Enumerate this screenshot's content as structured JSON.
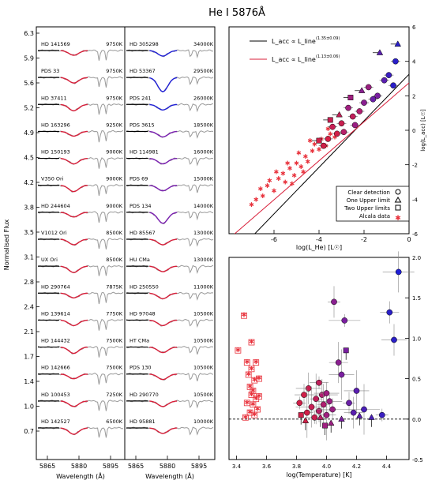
{
  "title": "He I 5876Å",
  "spectra_panel": {
    "ylabel": "Normalised Flux",
    "xlabel": "Wavelength (Å)",
    "yticks": [
      "6.3",
      "5.9",
      "5.6",
      "5.2",
      "4.9",
      "4.5",
      "4.2",
      "3.8",
      "3.5",
      "3.1",
      "2.8",
      "2.4",
      "2.1",
      "1.7",
      "1.4",
      "1.0",
      "0.7"
    ],
    "xticks": [
      "5865",
      "5880",
      "5895"
    ],
    "left_column": [
      {
        "name": "HD 141569",
        "teff": "9750K"
      },
      {
        "name": "PDS 33",
        "teff": "9750K"
      },
      {
        "name": "HD 37411",
        "teff": "9750K"
      },
      {
        "name": "HD 163296",
        "teff": "9250K"
      },
      {
        "name": "HD 150193",
        "teff": "9000K"
      },
      {
        "name": "V350 Ori",
        "teff": "9000K"
      },
      {
        "name": "HD 244604",
        "teff": "9000K"
      },
      {
        "name": "V1012 Ori",
        "teff": "8500K"
      },
      {
        "name": "UX Ori",
        "teff": "8500K"
      },
      {
        "name": "HD 290764",
        "teff": "7875K"
      },
      {
        "name": "HD 139614",
        "teff": "7750K"
      },
      {
        "name": "HD 144432",
        "teff": "7500K"
      },
      {
        "name": "HD 142666",
        "teff": "7500K"
      },
      {
        "name": "HD 100453",
        "teff": "7250K"
      },
      {
        "name": "HD 142527",
        "teff": "6500K"
      }
    ],
    "right_column": [
      {
        "name": "HD 305298",
        "teff": "34000K"
      },
      {
        "name": "HD 53367",
        "teff": "29500K"
      },
      {
        "name": "PDS 241",
        "teff": "26000K"
      },
      {
        "name": "PDS 3615",
        "teff": "18500K"
      },
      {
        "name": "HD 114981",
        "teff": "16000K"
      },
      {
        "name": "PDS 69",
        "teff": "15000K"
      },
      {
        "name": "PDS 134",
        "teff": "14000K"
      },
      {
        "name": "HD 85567",
        "teff": "13000K"
      },
      {
        "name": "HU CMa",
        "teff": "13000K"
      },
      {
        "name": "HD 250550",
        "teff": "11000K"
      },
      {
        "name": "HD 97048",
        "teff": "10500K"
      },
      {
        "name": "HT CMa",
        "teff": "10500K"
      },
      {
        "name": "PDS 130",
        "teff": "10500K"
      },
      {
        "name": "HD 290770",
        "teff": "10500K"
      },
      {
        "name": "HD 95881",
        "teff": "10000K"
      }
    ]
  },
  "colors": {
    "observed": "#999999",
    "continuum": "#000000",
    "blue": "#1f1fd6",
    "purple": "#7a1fb0",
    "red": "#d81f3a",
    "alcala": "#e8323c"
  },
  "chart_data": [
    {
      "type": "scatter",
      "panel": "top-right",
      "xlabel": "log(L_He) [L☉]",
      "ylabel": "log(L_acc) [L☉]",
      "xlim": [
        -8,
        0
      ],
      "ylim": [
        -6,
        6
      ],
      "xticks": [
        "-6",
        "-4",
        "-2",
        "0"
      ],
      "yticks": [
        "-6",
        "-4",
        "-2",
        "0",
        "2",
        "4",
        "6"
      ],
      "legend": {
        "position": "bottom-right",
        "entries": [
          "Clear detection",
          "One Upper limit",
          "Two Upper limits",
          "Alcala data"
        ]
      },
      "fit_legend": {
        "position": "top-left",
        "entries": [
          {
            "label": "L_acc ∝ L_line",
            "exponent": "(1.35±0.09)",
            "color": "#000000"
          },
          {
            "label": "L_acc ∝ L_line",
            "exponent": "(1.13±0.06)",
            "color": "#d81f3a"
          }
        ]
      },
      "fits": [
        {
          "slope": 1.35,
          "intercept": 3.25,
          "color": "#000000"
        },
        {
          "slope": 1.13,
          "intercept": 2.75,
          "color": "#d81f3a"
        }
      ],
      "detections": [
        {
          "x": -0.6,
          "y": 4.0,
          "c": "#2a1fc8"
        },
        {
          "x": -0.9,
          "y": 3.2,
          "c": "#3a1fc0"
        },
        {
          "x": -0.7,
          "y": 2.6,
          "c": "#2a1fc8"
        },
        {
          "x": -1.1,
          "y": 2.9,
          "c": "#5a1fb0"
        },
        {
          "x": -1.4,
          "y": 2.0,
          "c": "#7a1fa0"
        },
        {
          "x": -1.8,
          "y": 2.5,
          "c": "#9a1f80"
        },
        {
          "x": -2.0,
          "y": 1.6,
          "c": "#8a1f90"
        },
        {
          "x": -2.2,
          "y": 1.1,
          "c": "#b01f70"
        },
        {
          "x": -2.5,
          "y": 0.8,
          "c": "#c01f5a"
        },
        {
          "x": -2.7,
          "y": 1.3,
          "c": "#a01f80"
        },
        {
          "x": -3.0,
          "y": 0.4,
          "c": "#c81f50"
        },
        {
          "x": -3.2,
          "y": -0.2,
          "c": "#d01f48"
        },
        {
          "x": -3.4,
          "y": 0.2,
          "c": "#c81f55"
        },
        {
          "x": -3.6,
          "y": -0.5,
          "c": "#d81f45"
        },
        {
          "x": -2.9,
          "y": -0.1,
          "c": "#b81f68"
        },
        {
          "x": -2.4,
          "y": 0.3,
          "c": "#9a1f82"
        },
        {
          "x": -1.6,
          "y": 1.8,
          "c": "#6a1fa8"
        },
        {
          "x": -3.8,
          "y": -0.9,
          "c": "#d01f48"
        }
      ],
      "one_upper": [
        {
          "x": -1.3,
          "y": 4.5,
          "c": "#5a1fb0"
        },
        {
          "x": -2.1,
          "y": 2.3,
          "c": "#8a1f90"
        },
        {
          "x": -3.1,
          "y": 0.9,
          "c": "#c01f55"
        },
        {
          "x": -0.5,
          "y": 5.0,
          "c": "#2a1fc8"
        }
      ],
      "two_upper": [
        {
          "x": -3.5,
          "y": 0.6,
          "c": "#c81f50"
        },
        {
          "x": -4.0,
          "y": -0.6,
          "c": "#d01f48"
        },
        {
          "x": -2.6,
          "y": 1.9,
          "c": "#a01f80"
        }
      ],
      "alcala": [
        {
          "x": -7.0,
          "y": -4.3
        },
        {
          "x": -6.8,
          "y": -4.0
        },
        {
          "x": -6.5,
          "y": -3.8
        },
        {
          "x": -6.3,
          "y": -3.2
        },
        {
          "x": -6.0,
          "y": -3.5
        },
        {
          "x": -5.8,
          "y": -2.8
        },
        {
          "x": -5.6,
          "y": -2.5
        },
        {
          "x": -5.5,
          "y": -3.0
        },
        {
          "x": -5.3,
          "y": -2.2
        },
        {
          "x": -5.1,
          "y": -2.6
        },
        {
          "x": -5.0,
          "y": -1.9
        },
        {
          "x": -4.8,
          "y": -2.1
        },
        {
          "x": -4.6,
          "y": -1.5
        },
        {
          "x": -4.5,
          "y": -1.8
        },
        {
          "x": -4.3,
          "y": -1.2
        },
        {
          "x": -4.2,
          "y": -0.8
        },
        {
          "x": -4.0,
          "y": -1.1
        },
        {
          "x": -3.9,
          "y": -0.5
        },
        {
          "x": -3.7,
          "y": -0.9
        },
        {
          "x": -3.5,
          "y": -0.2
        },
        {
          "x": -6.2,
          "y": -2.9
        },
        {
          "x": -5.9,
          "y": -2.4
        },
        {
          "x": -5.4,
          "y": -1.9
        },
        {
          "x": -4.9,
          "y": -1.3
        },
        {
          "x": -4.4,
          "y": -0.6
        },
        {
          "x": -6.6,
          "y": -3.4
        },
        {
          "x": -5.2,
          "y": -3.1
        },
        {
          "x": -4.7,
          "y": -2.4
        },
        {
          "x": -3.3,
          "y": -0.4
        },
        {
          "x": -3.6,
          "y": 0.1
        }
      ]
    },
    {
      "type": "scatter",
      "panel": "bottom-right",
      "xlabel": "log(Temperature) [K]",
      "ylabel": "",
      "xlim": [
        3.35,
        4.55
      ],
      "ylim": [
        -0.5,
        2.0
      ],
      "xticks": [
        "3.4",
        "3.6",
        "3.8",
        "4.0",
        "4.2",
        "4.4"
      ],
      "yticks": [
        "-0.5",
        "0.0",
        "0.5",
        "1.0",
        "1.5",
        "2.0"
      ],
      "zero_line": 0.0,
      "alcala": [
        {
          "x": 3.41,
          "y": 0.85
        },
        {
          "x": 3.45,
          "y": 1.28
        },
        {
          "x": 3.47,
          "y": 0.7
        },
        {
          "x": 3.48,
          "y": 0.55
        },
        {
          "x": 3.49,
          "y": 0.4
        },
        {
          "x": 3.5,
          "y": 0.62
        },
        {
          "x": 3.5,
          "y": 0.3
        },
        {
          "x": 3.51,
          "y": 0.18
        },
        {
          "x": 3.52,
          "y": 0.05
        },
        {
          "x": 3.52,
          "y": 0.48
        },
        {
          "x": 3.53,
          "y": 0.25
        },
        {
          "x": 3.54,
          "y": 0.12
        },
        {
          "x": 3.49,
          "y": 0.08
        },
        {
          "x": 3.51,
          "y": 0.35
        },
        {
          "x": 3.55,
          "y": 0.5
        },
        {
          "x": 3.47,
          "y": 0.2
        },
        {
          "x": 3.53,
          "y": 0.7
        },
        {
          "x": 3.5,
          "y": 0.95
        },
        {
          "x": 3.46,
          "y": 0.02
        },
        {
          "x": 3.55,
          "y": 0.28
        }
      ],
      "detections": [
        {
          "x": 3.82,
          "y": 0.2,
          "c": "#d01f48"
        },
        {
          "x": 3.85,
          "y": 0.3,
          "c": "#d01f48"
        },
        {
          "x": 3.88,
          "y": 0.38,
          "c": "#c81f50"
        },
        {
          "x": 3.9,
          "y": 0.15,
          "c": "#c81f55"
        },
        {
          "x": 3.93,
          "y": 0.25,
          "c": "#c01f5a"
        },
        {
          "x": 3.95,
          "y": 0.45,
          "c": "#c01f5a"
        },
        {
          "x": 3.95,
          "y": 0.1,
          "c": "#b81f68"
        },
        {
          "x": 3.97,
          "y": 0.3,
          "c": "#b01f70"
        },
        {
          "x": 3.98,
          "y": 0.18,
          "c": "#b01f70"
        },
        {
          "x": 4.0,
          "y": 0.05,
          "c": "#a01f80"
        },
        {
          "x": 4.02,
          "y": 0.22,
          "c": "#9a1f82"
        },
        {
          "x": 4.04,
          "y": 0.12,
          "c": "#9a1f82"
        },
        {
          "x": 4.05,
          "y": 1.45,
          "c": "#8a1f90"
        },
        {
          "x": 4.08,
          "y": 0.7,
          "c": "#8a1f90"
        },
        {
          "x": 4.1,
          "y": 0.55,
          "c": "#7a1fa0"
        },
        {
          "x": 4.12,
          "y": 1.22,
          "c": "#7a1fa0"
        },
        {
          "x": 4.15,
          "y": 0.2,
          "c": "#6a1fa8"
        },
        {
          "x": 4.18,
          "y": 0.08,
          "c": "#5a1fb0"
        },
        {
          "x": 4.2,
          "y": 0.35,
          "c": "#5a1fb0"
        },
        {
          "x": 4.25,
          "y": 0.12,
          "c": "#4a1fb8"
        },
        {
          "x": 4.37,
          "y": 0.05,
          "c": "#3a1fc0"
        },
        {
          "x": 4.42,
          "y": 1.32,
          "c": "#2a1fc8"
        },
        {
          "x": 4.45,
          "y": 0.98,
          "c": "#2a1fc8"
        },
        {
          "x": 4.48,
          "y": 1.82,
          "c": "#1f1fd6"
        },
        {
          "x": 3.87,
          "y": 0.08,
          "c": "#d01f48"
        },
        {
          "x": 3.92,
          "y": 0.02,
          "c": "#c81f50"
        },
        {
          "x": 4.0,
          "y": 0.32,
          "c": "#a01f80"
        }
      ],
      "one_upper": [
        {
          "x": 3.86,
          "y": -0.02,
          "c": "#d01f48"
        },
        {
          "x": 3.96,
          "y": 0.02,
          "c": "#b81f68"
        },
        {
          "x": 4.03,
          "y": -0.05,
          "c": "#9a1f82"
        },
        {
          "x": 4.1,
          "y": 0.0,
          "c": "#7a1fa0"
        },
        {
          "x": 4.22,
          "y": 0.04,
          "c": "#5a1fb0"
        },
        {
          "x": 4.3,
          "y": 0.02,
          "c": "#4a1fb8"
        }
      ],
      "two_upper": [
        {
          "x": 3.83,
          "y": 0.05,
          "c": "#d01f48"
        },
        {
          "x": 3.99,
          "y": -0.08,
          "c": "#a01f80"
        },
        {
          "x": 4.13,
          "y": 0.85,
          "c": "#7a1fa0"
        }
      ]
    }
  ]
}
